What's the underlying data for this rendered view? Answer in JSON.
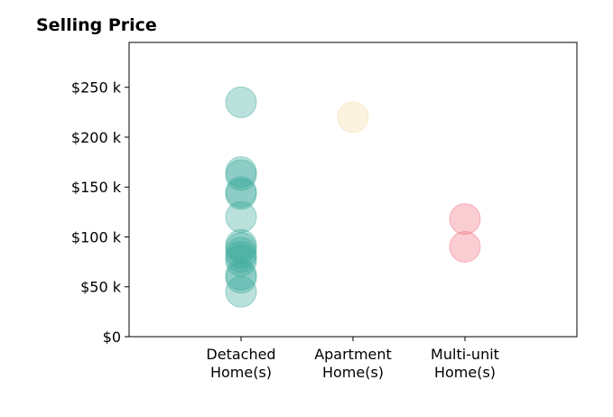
{
  "chart_data": {
    "type": "scatter",
    "title": "Selling Price",
    "xlabel": "",
    "ylabel": "",
    "categories": [
      "Detached\nHome(s)",
      "Apartment\nHome(s)",
      "Multi-unit\nHome(s)"
    ],
    "xlim": [
      -1,
      3
    ],
    "ylim": [
      0,
      295
    ],
    "yticks": [
      0,
      50,
      100,
      150,
      200,
      250
    ],
    "ytick_labels": [
      "$0",
      "$50 k",
      "$100 k",
      "$150 k",
      "$200 k",
      "$250 k"
    ],
    "grid": false,
    "legend": "none",
    "series": [
      {
        "category": "Detached\nHome(s)",
        "color": "#3aaa9a",
        "values": [
          235,
          165,
          162,
          145,
          143,
          120,
          92,
          89,
          84,
          80,
          76,
          62,
          59,
          45
        ]
      },
      {
        "category": "Apartment\nHome(s)",
        "color": "#f3d9a4",
        "values": [
          220
        ]
      },
      {
        "category": "Multi-unit\nHome(s)",
        "color": "#ef6f7e",
        "values": [
          118,
          90
        ]
      }
    ]
  }
}
